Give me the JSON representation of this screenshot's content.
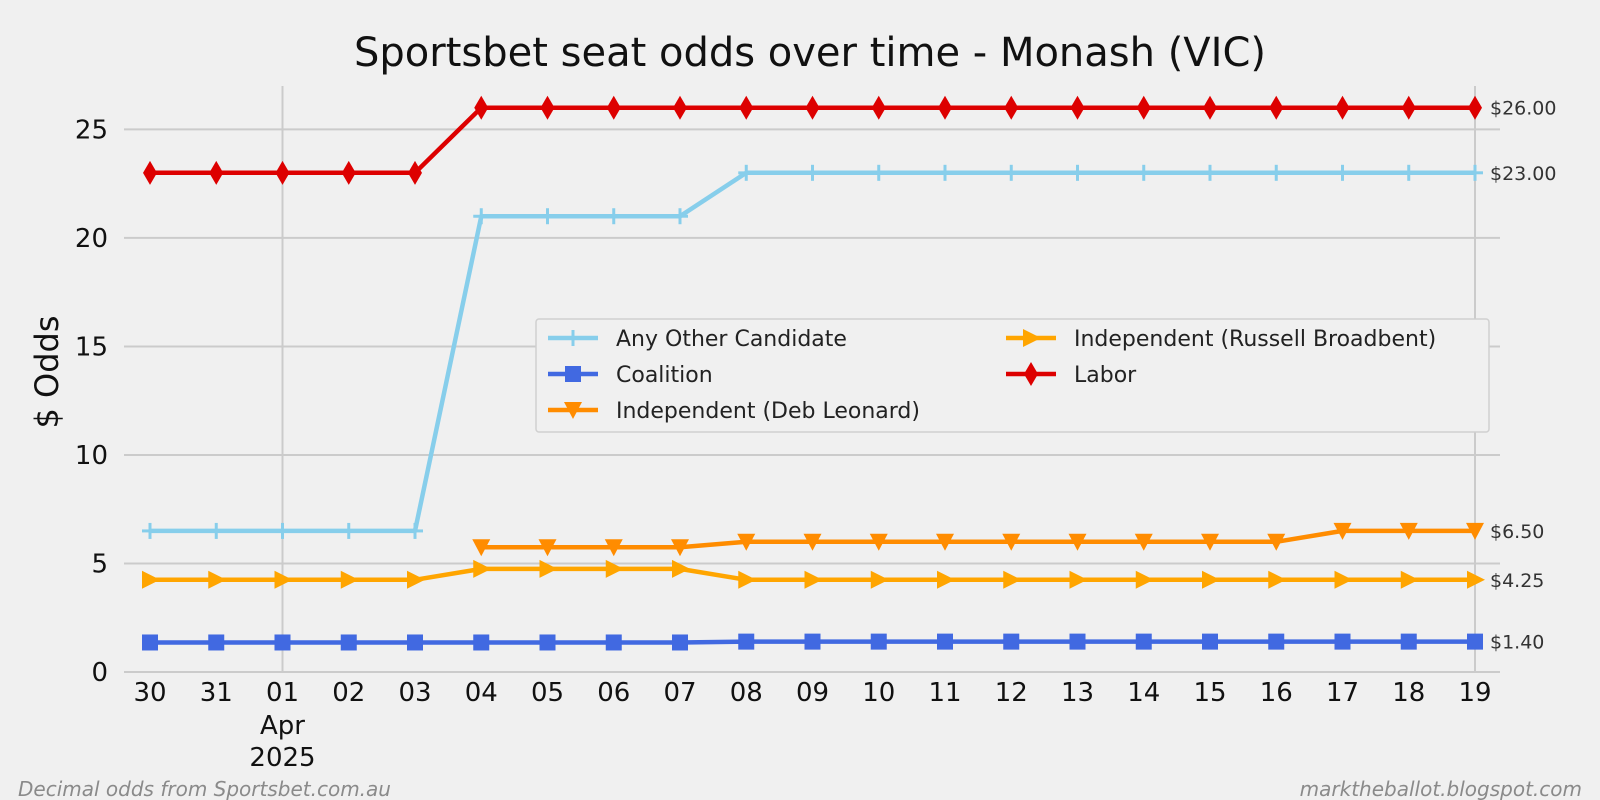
{
  "chart_data": {
    "type": "line",
    "title": "Sportsbet seat odds over time - Monash (VIC)",
    "xlabel": "",
    "ylabel": "$ Odds",
    "ylim": [
      0,
      27
    ],
    "yticks": [
      0,
      5,
      10,
      15,
      20,
      25
    ],
    "grid": true,
    "legend_position": "center-right",
    "x": [
      "2025-03-30",
      "2025-03-31",
      "2025-04-01",
      "2025-04-02",
      "2025-04-03",
      "2025-04-04",
      "2025-04-05",
      "2025-04-06",
      "2025-04-07",
      "2025-04-08",
      "2025-04-09",
      "2025-04-10",
      "2025-04-11",
      "2025-04-12",
      "2025-04-13",
      "2025-04-14",
      "2025-04-15",
      "2025-04-16",
      "2025-04-17",
      "2025-04-18",
      "2025-04-19"
    ],
    "x_tick_labels": [
      "30",
      "31",
      "01",
      "02",
      "03",
      "04",
      "05",
      "06",
      "07",
      "08",
      "09",
      "10",
      "11",
      "12",
      "13",
      "14",
      "15",
      "16",
      "17",
      "18",
      "19"
    ],
    "x_tick_sublabel": "Apr",
    "x_tick_year": "2025",
    "series": [
      {
        "name": "Any Other Candidate",
        "color": "#87ceeb",
        "marker": "plus",
        "values": [
          6.5,
          6.5,
          6.5,
          6.5,
          6.5,
          21,
          21,
          21,
          21,
          23,
          23,
          23,
          23,
          23,
          23,
          23,
          23,
          23,
          23,
          23,
          23
        ]
      },
      {
        "name": "Coalition",
        "color": "#4169e1",
        "marker": "square",
        "values": [
          1.36,
          1.36,
          1.36,
          1.36,
          1.36,
          1.36,
          1.36,
          1.36,
          1.36,
          1.4,
          1.4,
          1.4,
          1.4,
          1.4,
          1.4,
          1.4,
          1.4,
          1.4,
          1.4,
          1.4,
          1.4
        ]
      },
      {
        "name": "Independent (Deb Leonard)",
        "color": "#ff8c00",
        "marker": "triangle-down",
        "values": [
          null,
          null,
          null,
          null,
          null,
          5.75,
          5.75,
          5.75,
          5.75,
          6,
          6,
          6,
          6,
          6,
          6,
          6,
          6,
          6,
          6.5,
          6.5,
          6.5
        ]
      },
      {
        "name": "Independent (Russell Broadbent)",
        "color": "#ffa500",
        "marker": "triangle-right",
        "values": [
          4.25,
          4.25,
          4.25,
          4.25,
          4.25,
          4.75,
          4.75,
          4.75,
          4.75,
          4.25,
          4.25,
          4.25,
          4.25,
          4.25,
          4.25,
          4.25,
          4.25,
          4.25,
          4.25,
          4.25,
          4.25
        ]
      },
      {
        "name": "Labor",
        "color": "#dd0000",
        "marker": "diamond",
        "values": [
          23,
          23,
          23,
          23,
          23,
          26,
          26,
          26,
          26,
          26,
          26,
          26,
          26,
          26,
          26,
          26,
          26,
          26,
          26,
          26,
          26
        ]
      }
    ],
    "end_labels": [
      {
        "text": "$26.00",
        "value": 26
      },
      {
        "text": "$23.00",
        "value": 23
      },
      {
        "text": "$6.50",
        "value": 6.5
      },
      {
        "text": "$4.25",
        "value": 4.25
      },
      {
        "text": "$1.40",
        "value": 1.4
      }
    ],
    "footer_left": "Decimal odds from Sportsbet.com.au",
    "footer_right": "marktheballot.blogspot.com"
  }
}
